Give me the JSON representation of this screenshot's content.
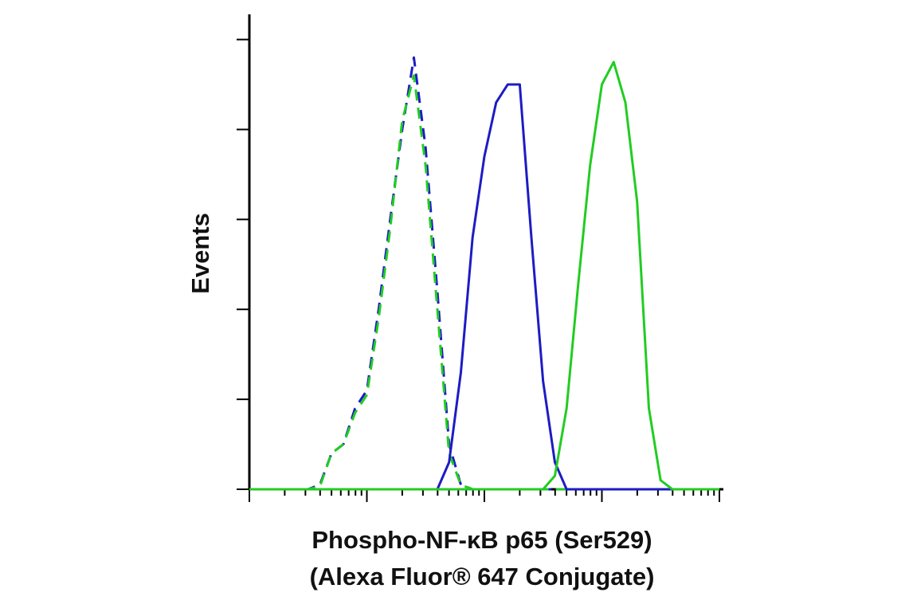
{
  "chart_data": {
    "type": "line",
    "ylabel": "Events",
    "xlabel": [
      "Phospho-NF-κB p65 (Ser529)",
      "(Alexa Fluor® 647 Conjugate)"
    ],
    "xscale": "log",
    "xlim": [
      1,
      10000
    ],
    "xticks": [
      1,
      10,
      100,
      1000,
      10000
    ],
    "ylim": [
      0,
      5.28
    ],
    "yticks": [
      0,
      1,
      2,
      3,
      4,
      5
    ],
    "x": [
      1,
      3.16,
      3.98,
      5.01,
      6.31,
      7.94,
      10,
      12.6,
      15.8,
      20,
      25.1,
      31.6,
      39.8,
      50.1,
      63.1,
      79.4,
      100,
      126,
      158,
      200,
      251,
      316,
      398,
      501,
      631,
      794,
      1000,
      1259,
      1585,
      1995,
      2512,
      3162,
      3981,
      10000
    ],
    "series": [
      {
        "color": "#1c1cc4",
        "dash": true,
        "values": [
          0,
          0,
          0.05,
          0.4,
          0.5,
          0.9,
          1.1,
          2.0,
          3.0,
          4.0,
          4.8,
          3.8,
          2.2,
          0.5,
          0.05,
          0,
          0,
          0,
          0,
          0,
          0,
          0,
          0,
          0,
          0,
          0,
          0,
          0,
          0,
          0,
          0,
          0,
          0,
          0
        ]
      },
      {
        "color": "#22cc22",
        "dash": true,
        "values": [
          0,
          0,
          0.03,
          0.4,
          0.5,
          0.85,
          1.05,
          1.9,
          2.9,
          4.1,
          4.6,
          3.6,
          2.0,
          0.4,
          0.05,
          0,
          0,
          0,
          0,
          0,
          0,
          0,
          0,
          0,
          0,
          0,
          0,
          0,
          0,
          0,
          0,
          0,
          0,
          0
        ]
      },
      {
        "color": "#1c1cc4",
        "dash": false,
        "values": [
          0,
          0,
          0,
          0,
          0,
          0,
          0,
          0,
          0,
          0,
          0,
          0,
          0,
          0.3,
          1.3,
          2.8,
          3.7,
          4.3,
          4.5,
          4.5,
          2.8,
          1.2,
          0.3,
          0,
          0,
          0,
          0,
          0,
          0,
          0,
          0,
          0,
          0,
          0
        ]
      },
      {
        "color": "#22cc22",
        "dash": false,
        "values": [
          0,
          0,
          0,
          0,
          0,
          0,
          0,
          0,
          0,
          0,
          0,
          0,
          0,
          0,
          0,
          0,
          0,
          0,
          0,
          0,
          0,
          0,
          0.15,
          0.9,
          2.3,
          3.6,
          4.5,
          4.75,
          4.3,
          3.2,
          0.9,
          0.1,
          0,
          0
        ]
      }
    ]
  }
}
